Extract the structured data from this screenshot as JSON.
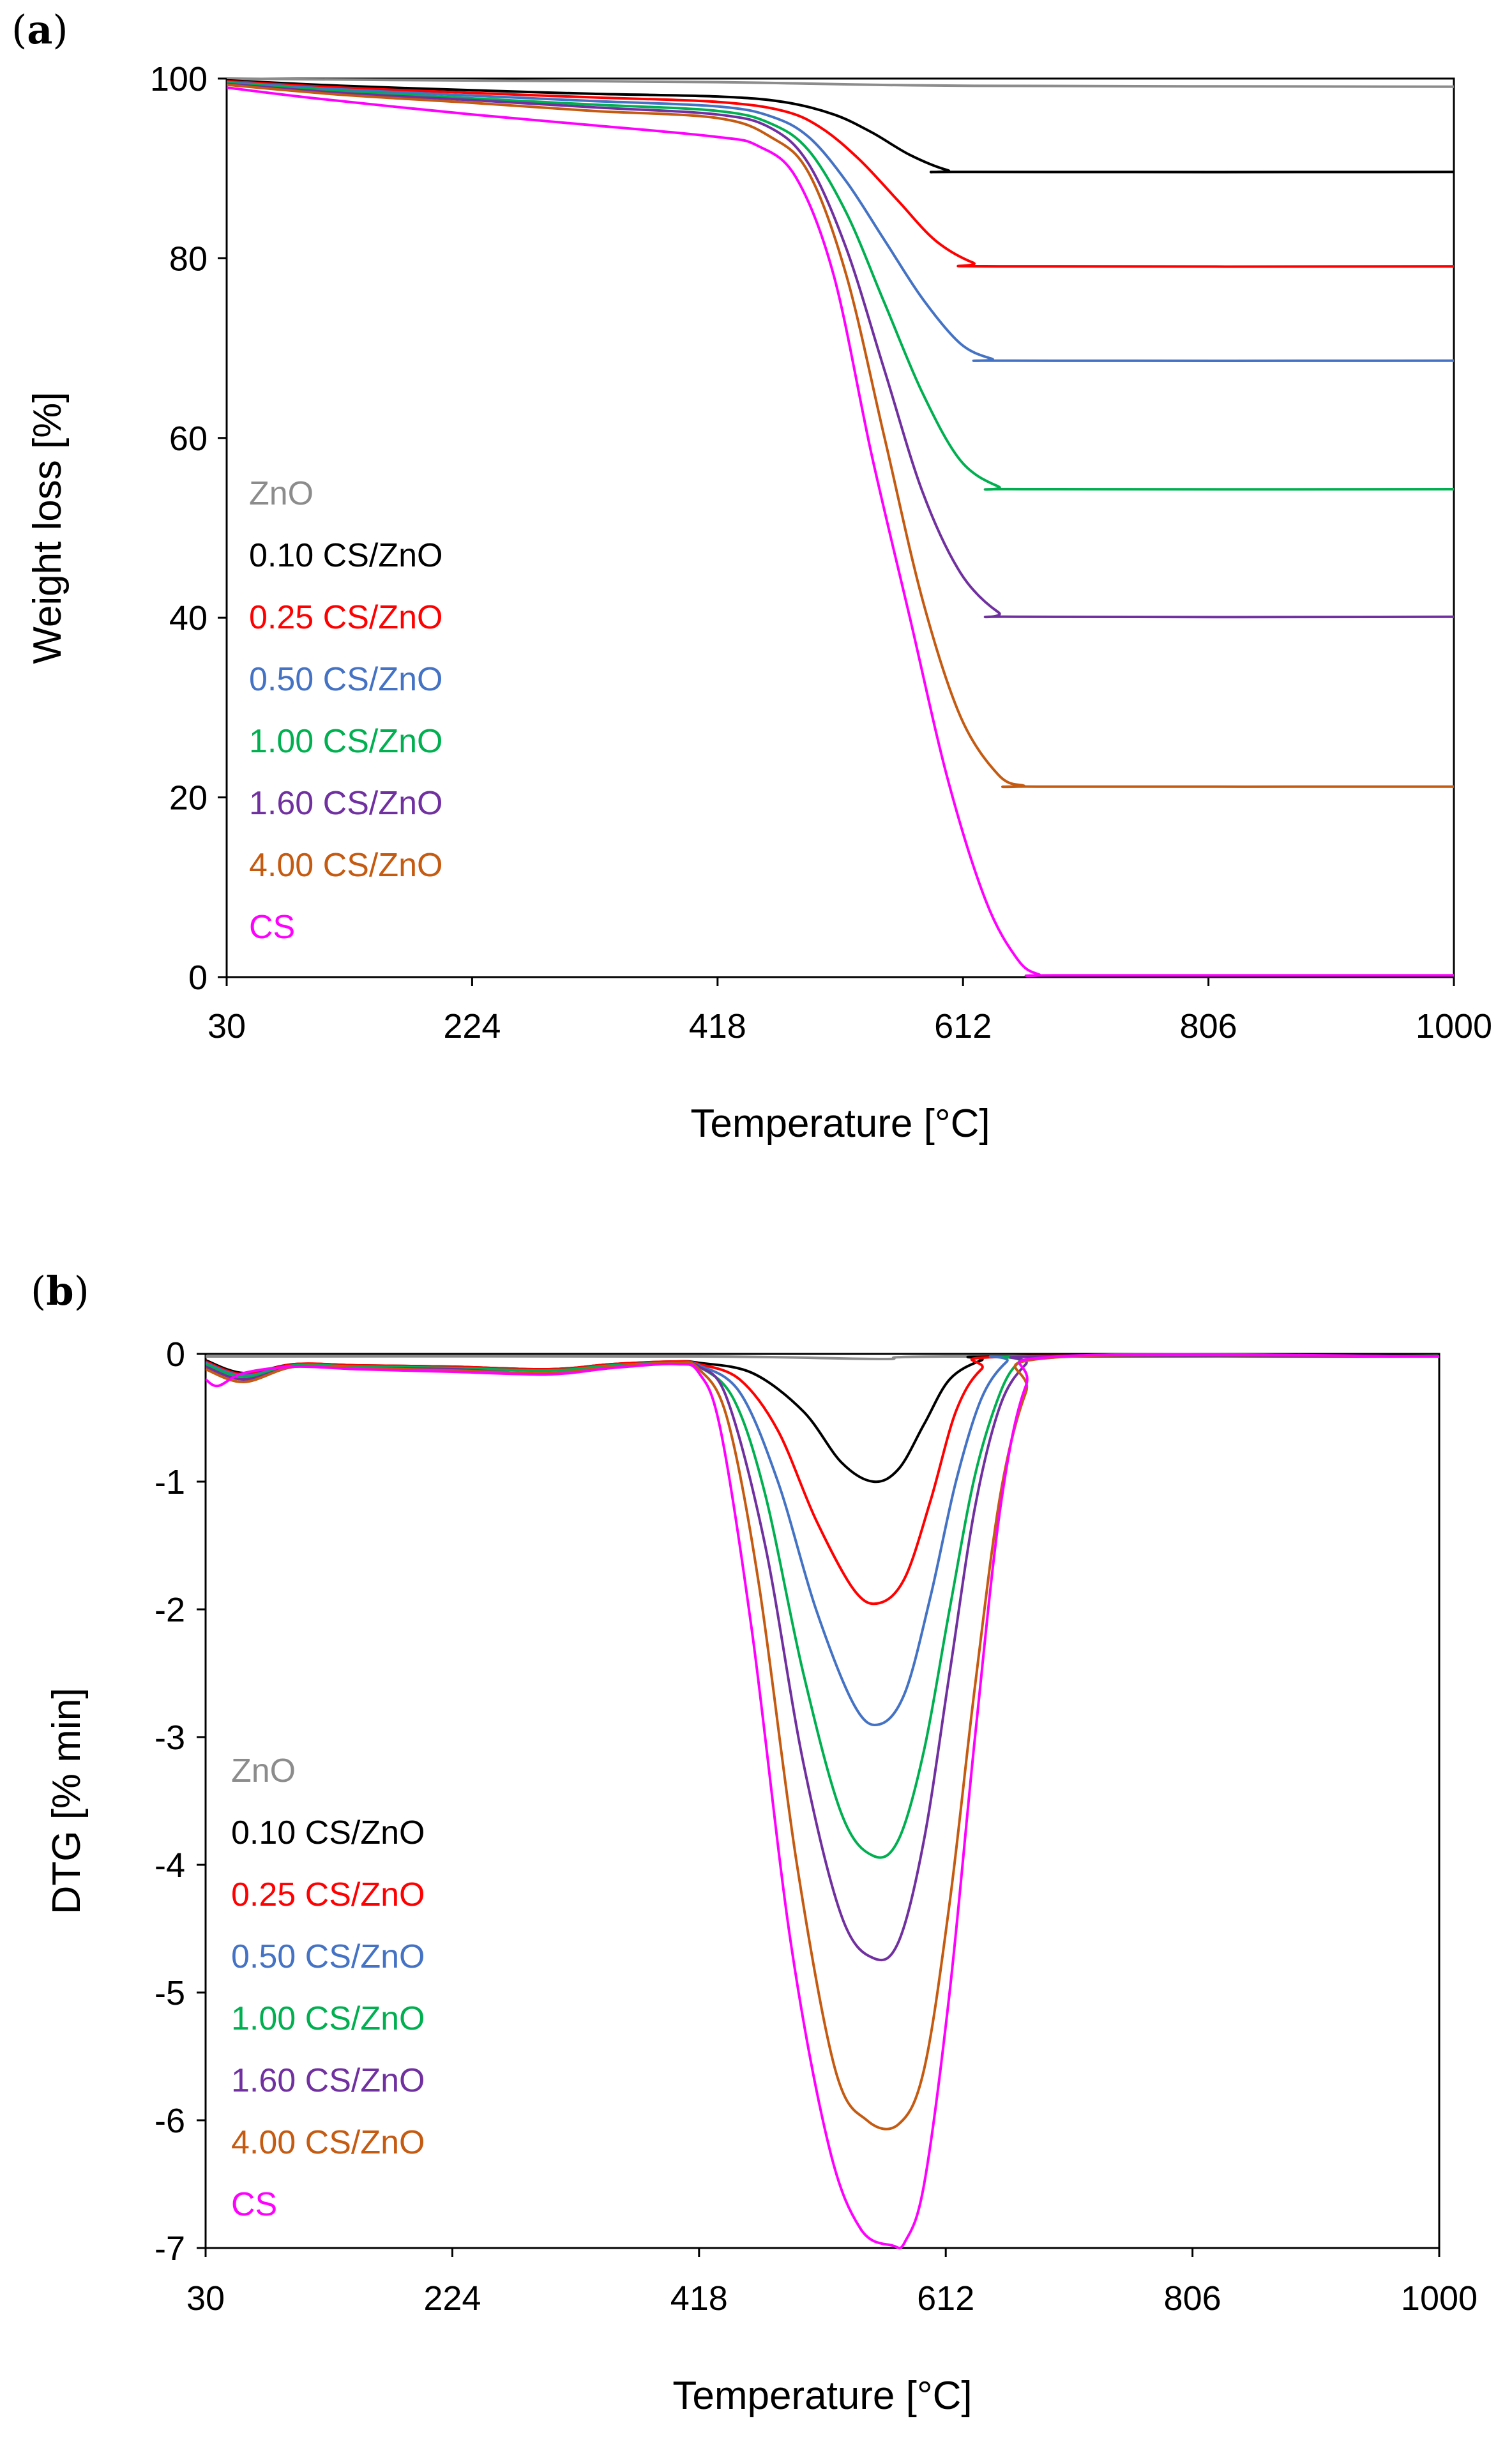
{
  "panels": [
    {
      "tag_open": "(",
      "tag_letter": "a",
      "tag_close": ")",
      "chart_data": {
        "type": "line",
        "title": "",
        "xlabel": "Temperature [°C]",
        "ylabel": "Weight loss [%]",
        "xlim": [
          30,
          1000
        ],
        "ylim": [
          0,
          100
        ],
        "xticks": [
          30,
          224,
          418,
          612,
          806,
          1000
        ],
        "yticks": [
          0,
          20,
          40,
          60,
          80,
          100
        ],
        "series": [
          {
            "name": "ZnO",
            "color": "#8c8c8c",
            "x": [
              30,
              200,
              418,
              612,
              1000
            ],
            "y": [
              100,
              99.8,
              99.6,
              99.2,
              99.1
            ]
          },
          {
            "name": "0.10 CS/ZnO",
            "color": "#000000",
            "x": [
              30,
              120,
              224,
              320,
              418,
              470,
              510,
              540,
              570,
              600,
              620,
              1000
            ],
            "y": [
              99.8,
              99.2,
              98.7,
              98.3,
              98.0,
              97.4,
              96.0,
              94.0,
              91.5,
              89.8,
              89.6,
              89.6
            ]
          },
          {
            "name": "0.25 CS/ZnO",
            "color": "#ff0000",
            "x": [
              30,
              120,
              224,
              320,
              418,
              470,
              500,
              530,
              560,
              590,
              620,
              640,
              1000
            ],
            "y": [
              99.7,
              99.0,
              98.4,
              97.9,
              97.4,
              96.4,
              94.5,
              91.0,
              86.5,
              82.0,
              79.5,
              79.1,
              79.1
            ]
          },
          {
            "name": "0.50 CS/ZnO",
            "color": "#4472c4",
            "x": [
              30,
              120,
              224,
              320,
              418,
              460,
              490,
              520,
              550,
              580,
              610,
              635,
              650,
              1000
            ],
            "y": [
              99.6,
              98.8,
              98.1,
              97.5,
              96.9,
              95.8,
              93.5,
              88.5,
              82.0,
              75.5,
              70.5,
              68.8,
              68.6,
              68.6
            ]
          },
          {
            "name": "1.00 CS/ZnO",
            "color": "#00b050",
            "x": [
              30,
              120,
              224,
              320,
              418,
              460,
              490,
              520,
              550,
              580,
              610,
              640,
              660,
              1000
            ],
            "y": [
              99.5,
              98.6,
              97.8,
              97.1,
              96.4,
              95.0,
              92.0,
              85.0,
              75.0,
              65.0,
              57.5,
              54.6,
              54.3,
              54.3
            ]
          },
          {
            "name": "1.60 CS/ZnO",
            "color": "#7030a0",
            "x": [
              30,
              120,
              224,
              320,
              418,
              460,
              490,
              520,
              550,
              580,
              610,
              640,
              660,
              1000
            ],
            "y": [
              99.4,
              98.4,
              97.6,
              96.8,
              96.0,
              94.5,
              90.5,
              81.0,
              67.5,
              54.0,
              45.0,
              40.6,
              40.1,
              40.1
            ]
          },
          {
            "name": "4.00 CS/ZnO",
            "color": "#c55a11",
            "x": [
              30,
              120,
              224,
              320,
              418,
              460,
              490,
              520,
              550,
              580,
              610,
              640,
              660,
              670,
              1000
            ],
            "y": [
              99.3,
              98.2,
              97.3,
              96.4,
              95.6,
              93.5,
              89.5,
              78.0,
              60.0,
              42.0,
              29.0,
              22.5,
              21.3,
              21.2,
              21.2
            ]
          },
          {
            "name": "CS",
            "color": "#ff00ff",
            "x": [
              30,
              100,
              224,
              320,
              418,
              450,
              480,
              510,
              540,
              570,
              600,
              630,
              655,
              672,
              690,
              1000
            ],
            "y": [
              99.0,
              97.8,
              96.0,
              94.8,
              93.5,
              92.5,
              89.0,
              78.0,
              58.0,
              40.0,
              22.0,
              8.5,
              2.0,
              0.3,
              0.2,
              0.2
            ]
          }
        ]
      }
    },
    {
      "tag_open": "(",
      "tag_letter": "b",
      "tag_close": ")",
      "chart_data": {
        "type": "line",
        "title": "",
        "xlabel": "Temperature [°C]",
        "ylabel": "DTG [% min]",
        "xlim": [
          30,
          1000
        ],
        "ylim": [
          -7,
          0
        ],
        "xticks": [
          30,
          224,
          418,
          612,
          806,
          1000
        ],
        "yticks": [
          0,
          -1,
          -2,
          -3,
          -4,
          -5,
          -6,
          -7
        ],
        "series": [
          {
            "name": "ZnO",
            "color": "#8c8c8c",
            "x": [
              30,
              418,
              560,
              612,
              1000
            ],
            "y": [
              -0.02,
              -0.02,
              -0.04,
              -0.02,
              -0.02
            ]
          },
          {
            "name": "0.10 CS/ZnO",
            "color": "#000000",
            "x": [
              30,
              60,
              100,
              150,
              224,
              300,
              350,
              400,
              418,
              460,
              500,
              530,
              555,
              575,
              595,
              615,
              640,
              660,
              1000
            ],
            "y": [
              -0.05,
              -0.15,
              -0.08,
              -0.09,
              -0.1,
              -0.12,
              -0.08,
              -0.06,
              -0.07,
              -0.15,
              -0.45,
              -0.85,
              -1.0,
              -0.9,
              -0.55,
              -0.2,
              -0.05,
              -0.02,
              -0.02
            ]
          },
          {
            "name": "0.25 CS/ZnO",
            "color": "#ff0000",
            "x": [
              30,
              60,
              100,
              150,
              224,
              300,
              350,
              400,
              418,
              450,
              480,
              510,
              540,
              560,
              580,
              600,
              620,
              640,
              665,
              1000
            ],
            "y": [
              -0.06,
              -0.16,
              -0.08,
              -0.09,
              -0.1,
              -0.12,
              -0.08,
              -0.06,
              -0.08,
              -0.2,
              -0.6,
              -1.3,
              -1.85,
              -1.95,
              -1.75,
              -1.15,
              -0.45,
              -0.12,
              -0.02,
              -0.02
            ]
          },
          {
            "name": "0.50 CS/ZnO",
            "color": "#4472c4",
            "x": [
              30,
              60,
              100,
              150,
              224,
              300,
              350,
              400,
              418,
              450,
              480,
              510,
              540,
              560,
              580,
              600,
              620,
              640,
              660,
              675,
              1000
            ],
            "y": [
              -0.07,
              -0.17,
              -0.09,
              -0.1,
              -0.11,
              -0.13,
              -0.09,
              -0.07,
              -0.09,
              -0.3,
              -1.0,
              -2.0,
              -2.75,
              -2.9,
              -2.65,
              -1.9,
              -1.0,
              -0.35,
              -0.06,
              -0.02,
              -0.02
            ]
          },
          {
            "name": "1.00 CS/ZnO",
            "color": "#00b050",
            "x": [
              30,
              60,
              100,
              150,
              224,
              300,
              350,
              400,
              418,
              445,
              470,
              500,
              530,
              555,
              575,
              595,
              615,
              635,
              655,
              670,
              685,
              1000
            ],
            "y": [
              -0.08,
              -0.18,
              -0.09,
              -0.1,
              -0.11,
              -0.13,
              -0.09,
              -0.07,
              -0.1,
              -0.35,
              -1.1,
              -2.5,
              -3.6,
              -3.93,
              -3.8,
              -3.1,
              -2.0,
              -0.95,
              -0.3,
              -0.06,
              -0.02,
              -0.02
            ]
          },
          {
            "name": "1.60 CS/ZnO",
            "color": "#7030a0",
            "x": [
              30,
              60,
              100,
              150,
              224,
              260,
              300,
              350,
              400,
              418,
              440,
              470,
              500,
              530,
              555,
              575,
              595,
              615,
              635,
              655,
              675,
              690,
              1000
            ],
            "y": [
              -0.1,
              -0.2,
              -0.1,
              -0.11,
              -0.12,
              -0.14,
              -0.16,
              -0.1,
              -0.07,
              -0.1,
              -0.35,
              -1.5,
              -3.2,
              -4.4,
              -4.73,
              -4.6,
              -3.8,
              -2.5,
              -1.2,
              -0.4,
              -0.08,
              -0.02,
              -0.02
            ]
          },
          {
            "name": "4.00 CS/ZnO",
            "color": "#c55a11",
            "x": [
              30,
              60,
              100,
              150,
              224,
              300,
              350,
              400,
              418,
              440,
              465,
              495,
              525,
              550,
              575,
              595,
              615,
              635,
              655,
              675,
              695,
              1000
            ],
            "y": [
              -0.12,
              -0.22,
              -0.1,
              -0.11,
              -0.13,
              -0.15,
              -0.1,
              -0.07,
              -0.12,
              -0.5,
              -1.8,
              -4.0,
              -5.6,
              -6.0,
              -6.03,
              -5.6,
              -4.3,
              -2.6,
              -1.1,
              -0.3,
              -0.03,
              -0.02
            ]
          },
          {
            "name": "CS",
            "color": "#ff00ff",
            "x": [
              30,
              40,
              60,
              100,
              150,
              224,
              300,
              350,
              400,
              418,
              435,
              460,
              490,
              520,
              545,
              570,
              580,
              595,
              615,
              635,
              655,
              675,
              700,
              1000
            ],
            "y": [
              -0.2,
              -0.25,
              -0.15,
              -0.1,
              -0.12,
              -0.14,
              -0.16,
              -0.11,
              -0.08,
              -0.15,
              -0.6,
              -2.2,
              -4.6,
              -6.2,
              -6.85,
              -6.98,
              -6.95,
              -6.5,
              -5.0,
              -3.0,
              -1.2,
              -0.25,
              -0.02,
              -0.02
            ]
          }
        ]
      }
    }
  ]
}
